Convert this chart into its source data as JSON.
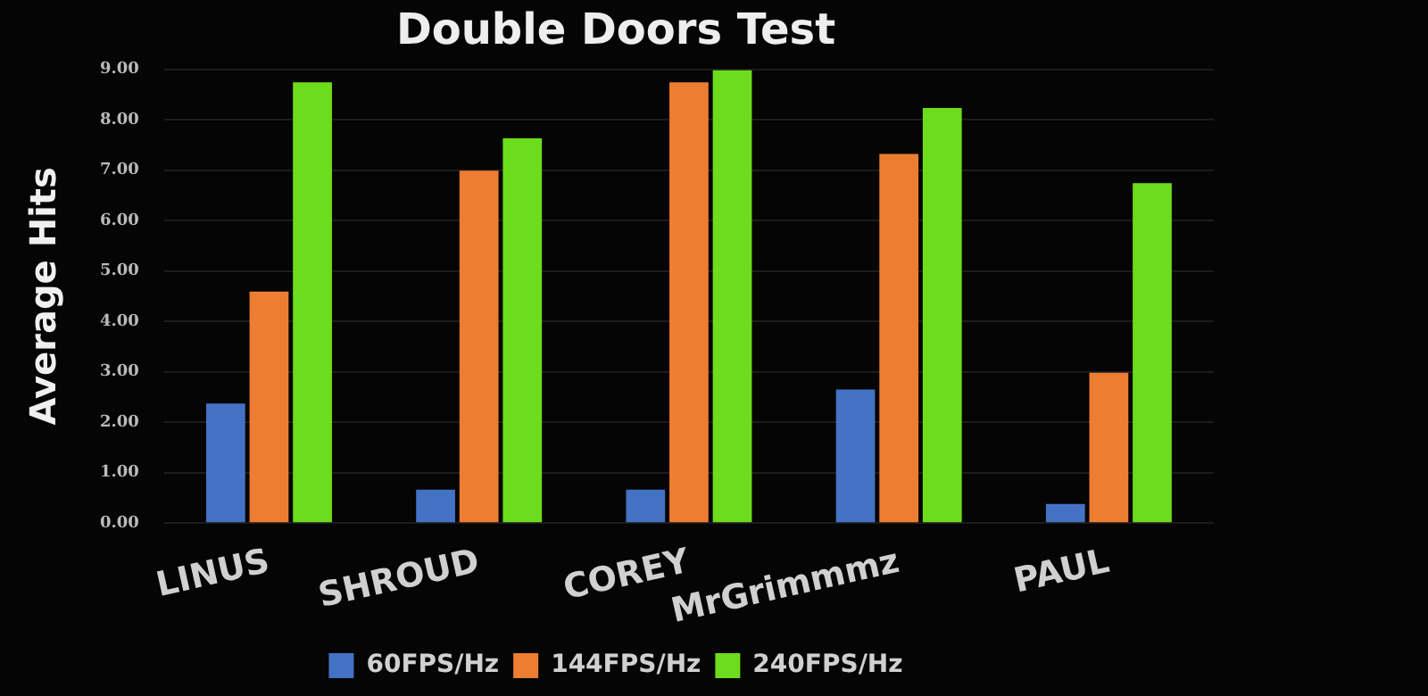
{
  "chart_data": {
    "type": "bar",
    "title": "Double Doors Test",
    "ylabel": "Average Hits",
    "categories": [
      "LINUS",
      "SHROUD",
      "COREY",
      "MrGrimmmz",
      "PAUL"
    ],
    "series": [
      {
        "name": "60FPS/Hz",
        "color": "#4472c4",
        "values": [
          2.37,
          0.66,
          0.66,
          2.65,
          0.38
        ]
      },
      {
        "name": "144FPS/Hz",
        "color": "#ed7d31",
        "values": [
          4.59,
          6.99,
          8.74,
          7.32,
          2.98
        ]
      },
      {
        "name": "240FPS/Hz",
        "color": "#6ddc1c",
        "values": [
          8.74,
          7.63,
          8.98,
          8.23,
          6.74
        ]
      }
    ],
    "ylim": [
      0,
      9
    ],
    "yticks": [
      {
        "value": 0,
        "label": "0.00"
      },
      {
        "value": 1,
        "label": "1.00"
      },
      {
        "value": 2,
        "label": "2.00"
      },
      {
        "value": 3,
        "label": "3.00"
      },
      {
        "value": 4,
        "label": "4.00"
      },
      {
        "value": 5,
        "label": "5.00"
      },
      {
        "value": 6,
        "label": "6.00"
      },
      {
        "value": 7,
        "label": "7.00"
      },
      {
        "value": 8,
        "label": "8.00"
      },
      {
        "value": 9,
        "label": "9.00"
      }
    ],
    "grid": "y",
    "legend": "bottom"
  }
}
